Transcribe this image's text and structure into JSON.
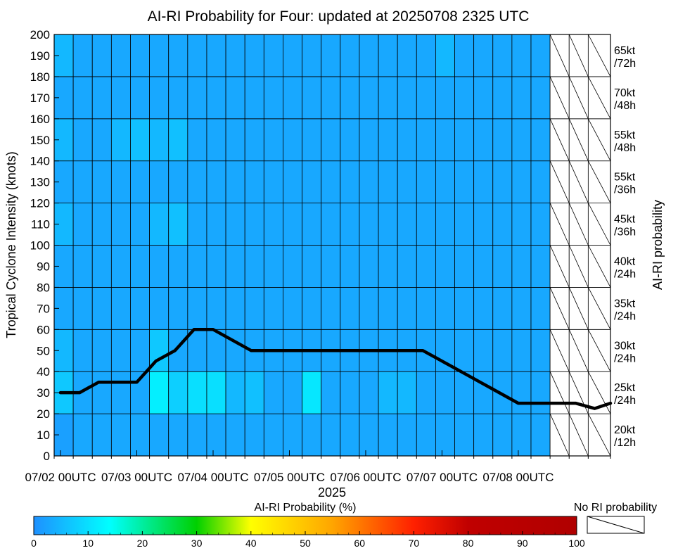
{
  "chart_data": {
    "type": "heatmap",
    "title": "AI-RI Probability for Four: updated at 20250708 2325 UTC",
    "ylabel": "Tropical Cyclone Intensity (knots)",
    "right_label": "AI-RI probability",
    "xlabel": "2025",
    "ylim": [
      0,
      200
    ],
    "yticks": [
      "0",
      "10",
      "20",
      "30",
      "40",
      "50",
      "60",
      "70",
      "80",
      "90",
      "100",
      "110",
      "120",
      "130",
      "140",
      "150",
      "160",
      "170",
      "180",
      "190",
      "200"
    ],
    "x_time_range": [
      "2025-07-01T22:00Z",
      "2025-07-09T05:00Z"
    ],
    "xticks": [
      {
        "time": "2025-07-02T00:00Z",
        "label": "07/02 00UTC"
      },
      {
        "time": "2025-07-03T00:00Z",
        "label": "07/03 00UTC"
      },
      {
        "time": "2025-07-04T00:00Z",
        "label": "07/04 00UTC"
      },
      {
        "time": "2025-07-05T00:00Z",
        "label": "07/05 00UTC"
      },
      {
        "time": "2025-07-06T00:00Z",
        "label": "07/06 00UTC"
      },
      {
        "time": "2025-07-07T00:00Z",
        "label": "07/07 00UTC"
      },
      {
        "time": "2025-07-08T00:00Z",
        "label": "07/08 00UTC"
      }
    ],
    "intervals_hours": 6,
    "n_data_columns": 26,
    "n_no_ri_columns": 3,
    "row_labels": [
      "20kt\n/12h",
      "25kt\n/24h",
      "30kt\n/24h",
      "35kt\n/24h",
      "40kt\n/24h",
      "45kt\n/36h",
      "55kt\n/36h",
      "55kt\n/48h",
      "70kt\n/48h",
      "65kt\n/72h"
    ],
    "probability_matrix_pct": [
      [
        2,
        3,
        3,
        3,
        3,
        3,
        3,
        3,
        3,
        3,
        3,
        3,
        3,
        3,
        3,
        3,
        3,
        3,
        3,
        3,
        3,
        3,
        3,
        3,
        3,
        3
      ],
      [
        7,
        3,
        3,
        3,
        3,
        12,
        8,
        10,
        10,
        5,
        6,
        3,
        3,
        11,
        3,
        3,
        3,
        5,
        5,
        3,
        3,
        3,
        3,
        3,
        3,
        3
      ],
      [
        5,
        3,
        3,
        3,
        3,
        7,
        3,
        3,
        3,
        3,
        3,
        3,
        3,
        3,
        3,
        3,
        3,
        3,
        3,
        3,
        3,
        3,
        3,
        3,
        3,
        3
      ],
      [
        3,
        3,
        3,
        3,
        3,
        3,
        3,
        3,
        3,
        3,
        3,
        3,
        3,
        3,
        3,
        3,
        3,
        3,
        3,
        3,
        3,
        3,
        3,
        3,
        3,
        3
      ],
      [
        3,
        3,
        3,
        3,
        3,
        3,
        3,
        3,
        3,
        3,
        3,
        3,
        3,
        3,
        3,
        3,
        3,
        3,
        3,
        3,
        3,
        3,
        3,
        3,
        3,
        3
      ],
      [
        5,
        3,
        3,
        3,
        3,
        5,
        6,
        3,
        3,
        3,
        3,
        3,
        3,
        3,
        3,
        3,
        3,
        3,
        3,
        3,
        3,
        3,
        3,
        3,
        3,
        3
      ],
      [
        3,
        3,
        3,
        3,
        3,
        3,
        3,
        3,
        3,
        3,
        3,
        3,
        3,
        3,
        3,
        3,
        3,
        3,
        3,
        3,
        3,
        3,
        3,
        3,
        3,
        3
      ],
      [
        5,
        3,
        3,
        5,
        6,
        5,
        6,
        3,
        3,
        3,
        3,
        3,
        3,
        3,
        3,
        3,
        3,
        3,
        3,
        3,
        3,
        3,
        3,
        3,
        3,
        3
      ],
      [
        3,
        3,
        3,
        3,
        3,
        3,
        3,
        3,
        3,
        3,
        3,
        3,
        3,
        3,
        3,
        3,
        3,
        3,
        3,
        3,
        3,
        3,
        3,
        3,
        3,
        3
      ],
      [
        5,
        3,
        3,
        3,
        3,
        3,
        3,
        3,
        3,
        3,
        3,
        3,
        3,
        3,
        3,
        3,
        3,
        3,
        3,
        3,
        5,
        3,
        3,
        3,
        3,
        3
      ]
    ],
    "intensity_series": {
      "x": [
        "2025-07-02T00:00Z",
        "2025-07-02T06:00Z",
        "2025-07-02T12:00Z",
        "2025-07-02T18:00Z",
        "2025-07-03T00:00Z",
        "2025-07-03T06:00Z",
        "2025-07-03T12:00Z",
        "2025-07-03T18:00Z",
        "2025-07-04T00:00Z",
        "2025-07-04T06:00Z",
        "2025-07-04T12:00Z",
        "2025-07-04T18:00Z",
        "2025-07-05T00:00Z",
        "2025-07-05T06:00Z",
        "2025-07-05T12:00Z",
        "2025-07-05T18:00Z",
        "2025-07-06T00:00Z",
        "2025-07-06T06:00Z",
        "2025-07-06T12:00Z",
        "2025-07-06T18:00Z",
        "2025-07-07T00:00Z",
        "2025-07-07T06:00Z",
        "2025-07-07T12:00Z",
        "2025-07-07T18:00Z",
        "2025-07-08T00:00Z",
        "2025-07-08T06:00Z",
        "2025-07-08T12:00Z",
        "2025-07-08T18:00Z",
        "2025-07-09T00:00Z",
        "2025-07-09T05:00Z"
      ],
      "y": [
        30,
        30,
        35,
        35,
        35,
        45,
        50,
        60,
        60,
        55,
        50,
        50,
        50,
        50,
        50,
        50,
        50,
        50,
        50,
        50,
        45,
        40,
        35,
        30,
        25,
        25,
        25,
        25,
        22.5,
        25
      ]
    },
    "colorbar": {
      "label": "AI-RI Probability (%)",
      "range": [
        0,
        100
      ],
      "ticks": [
        "0",
        "10",
        "20",
        "30",
        "40",
        "50",
        "60",
        "70",
        "80",
        "90",
        "100"
      ],
      "stops": [
        {
          "value": 0,
          "color": "#1e90ff"
        },
        {
          "value": 14,
          "color": "#00ffff"
        },
        {
          "value": 30,
          "color": "#00d000"
        },
        {
          "value": 40,
          "color": "#ffff00"
        },
        {
          "value": 55,
          "color": "#ffa500"
        },
        {
          "value": 70,
          "color": "#ff2000"
        },
        {
          "value": 80,
          "color": "#c00000"
        },
        {
          "value": 100,
          "color": "#b00000"
        }
      ],
      "no_ri_label": "No RI probability"
    },
    "grid": true
  }
}
